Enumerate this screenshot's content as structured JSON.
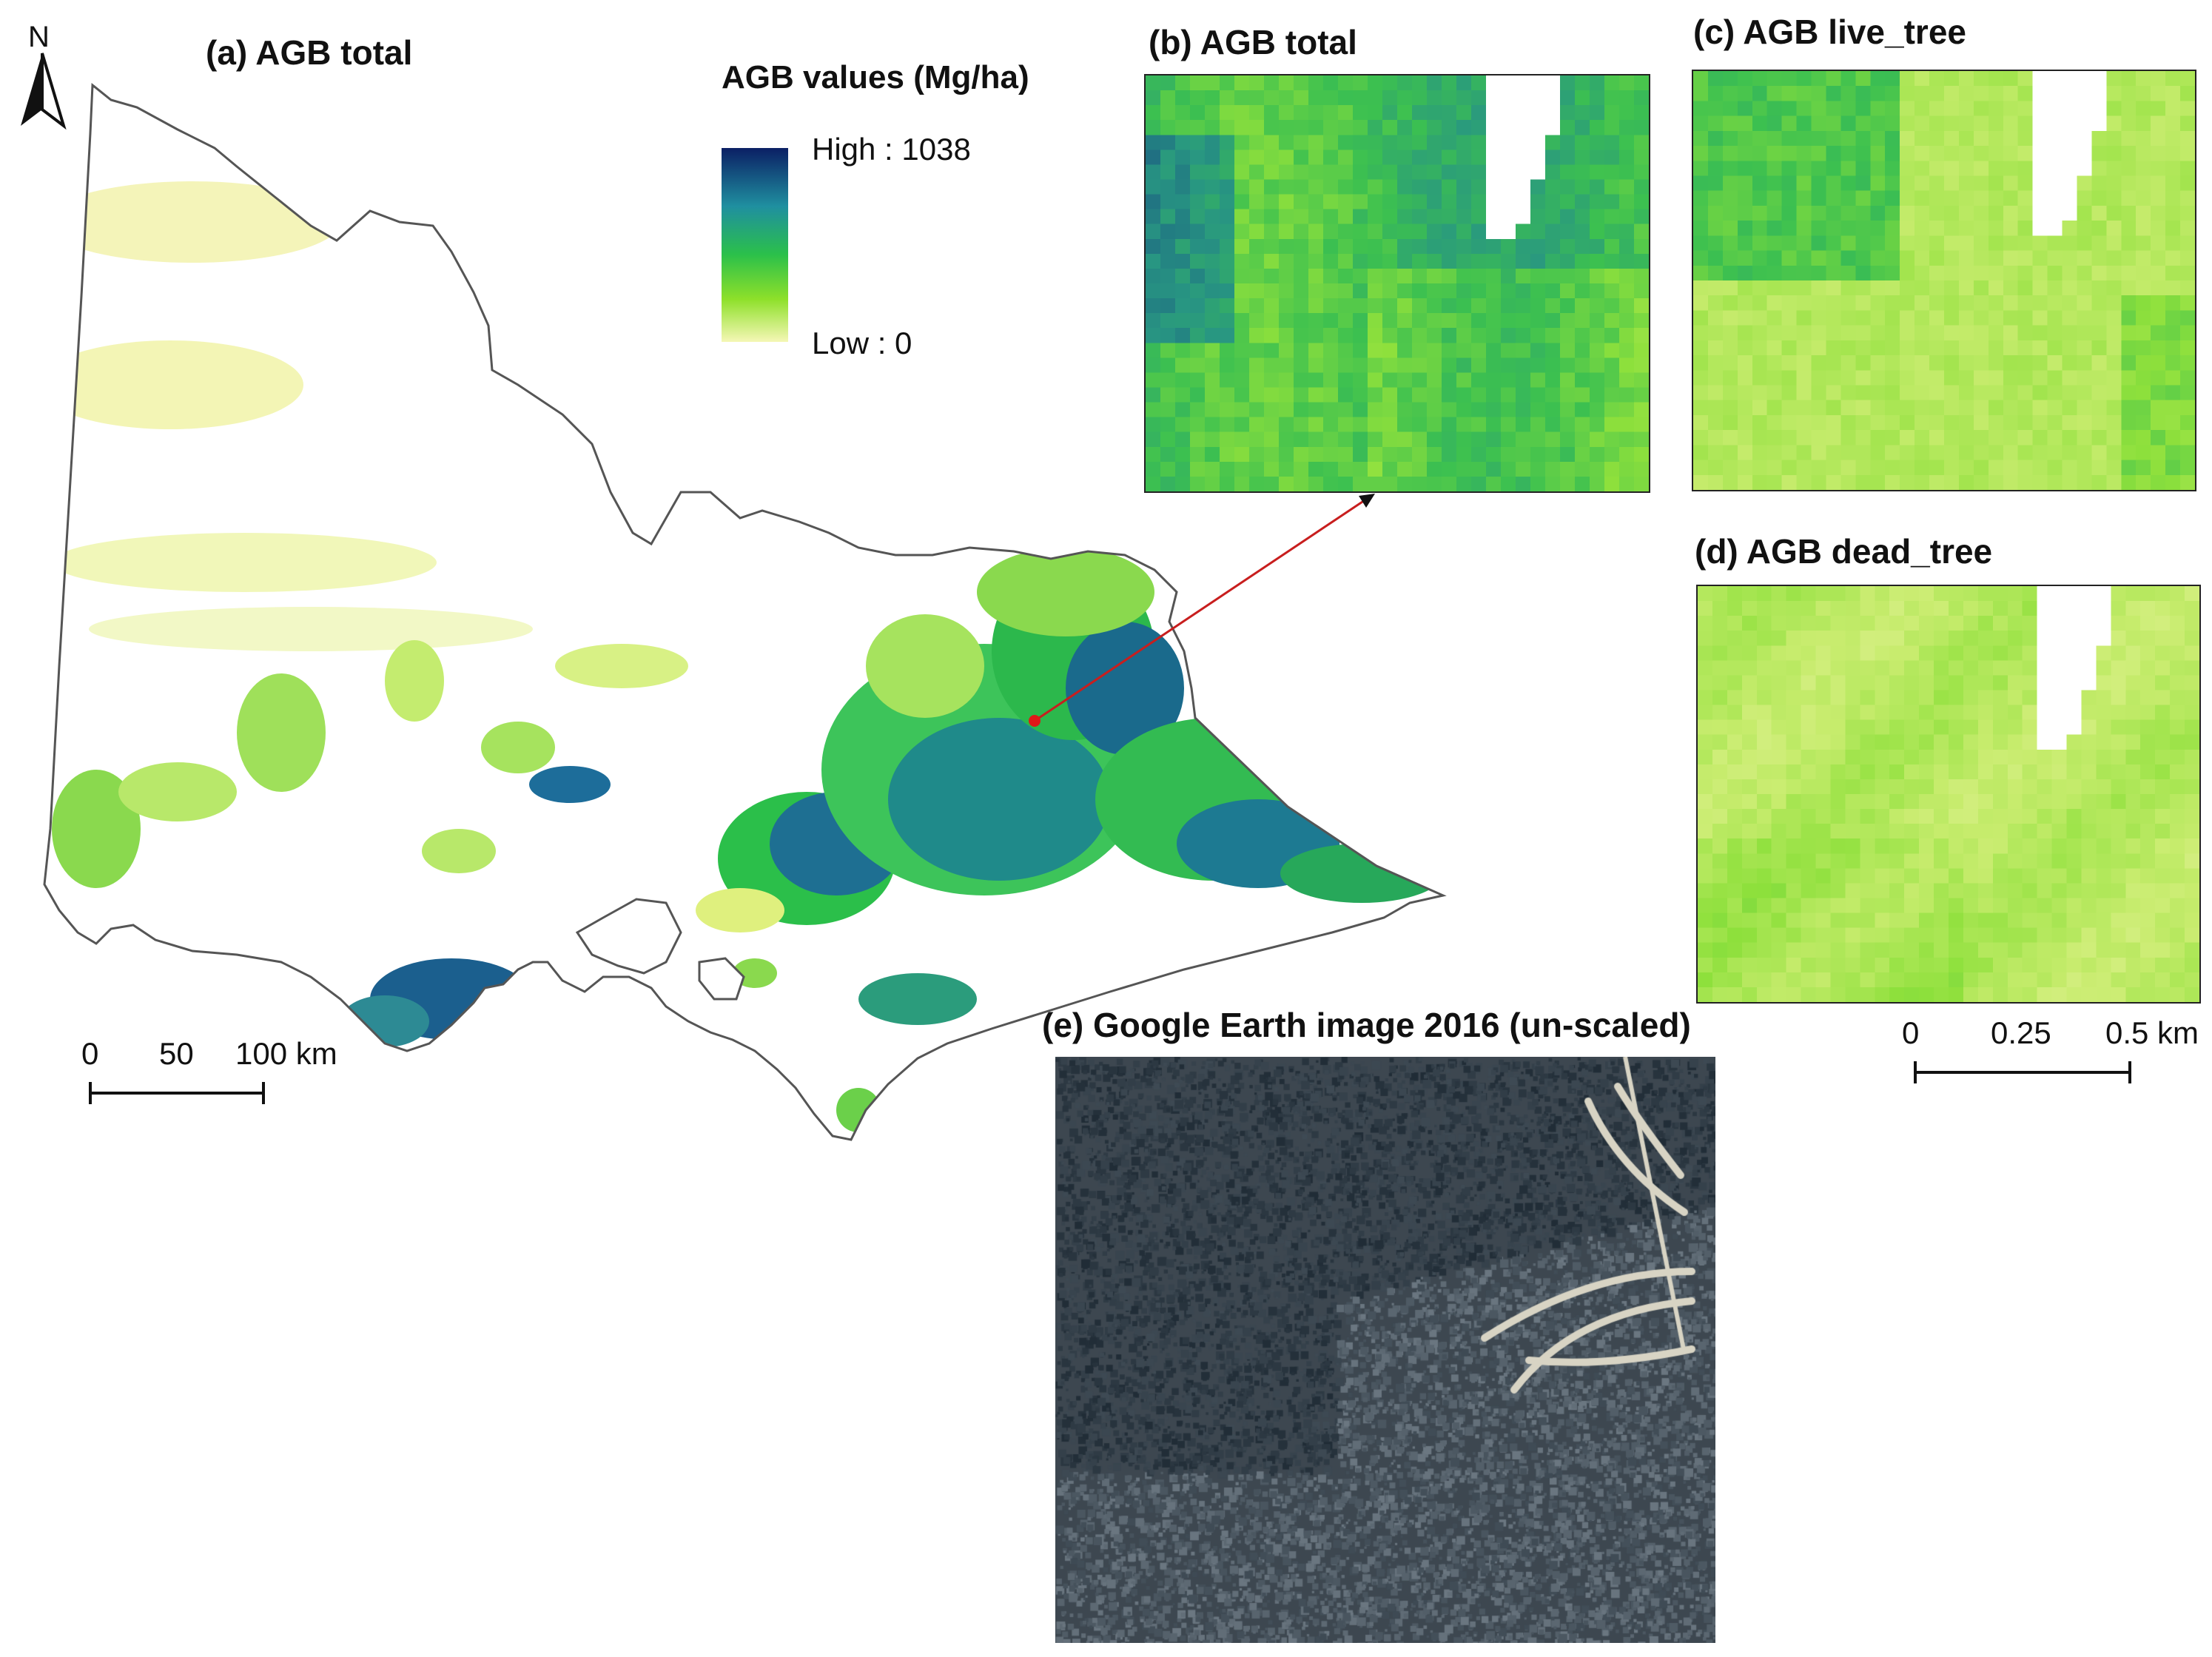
{
  "north_arrow": {
    "label": "N"
  },
  "panels": {
    "a": {
      "title": "(a) AGB total"
    },
    "b": {
      "title": "(b) AGB total"
    },
    "c": {
      "title": "(c) AGB live_tree"
    },
    "d": {
      "title": "(d) AGB dead_tree"
    },
    "e": {
      "title": "(e) Google Earth image 2016 (un-scaled)"
    }
  },
  "legend": {
    "title": "AGB values (Mg/ha)",
    "high_label": "High : 1038",
    "low_label": "Low : 0",
    "high_value": 1038,
    "low_value": 0,
    "unit": "Mg/ha",
    "ramp_colors": [
      "#0b1f64",
      "#1f8fa0",
      "#2bc04a",
      "#8ee02a",
      "#f5f7b6"
    ]
  },
  "scale_bar_main": {
    "ticks": [
      "0",
      "50",
      "100 km"
    ],
    "values": [
      0,
      50,
      100
    ],
    "unit": "km"
  },
  "scale_bar_inset": {
    "ticks": [
      "0",
      "0.25",
      "0.5 km"
    ],
    "values": [
      0,
      0.25,
      0.5
    ],
    "unit": "km"
  },
  "colors": {
    "outline": "#555555",
    "pointer_arrow": "#c81e1e",
    "location_marker": "#e01818",
    "frame": "#222222"
  }
}
